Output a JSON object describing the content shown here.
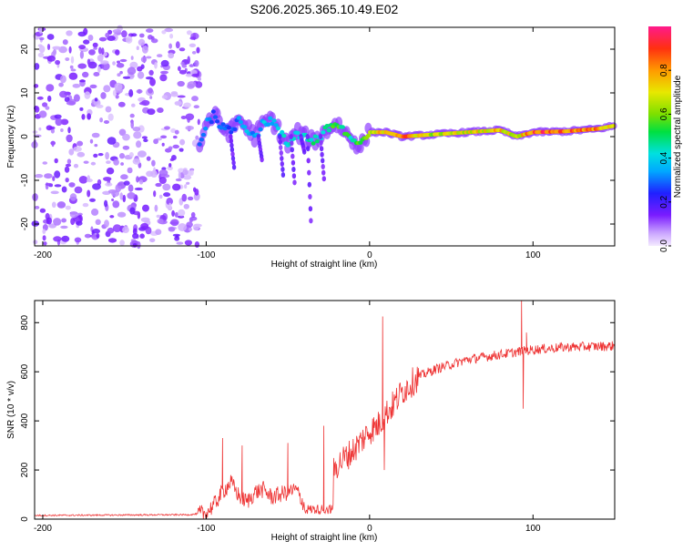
{
  "title": "S206.2025.365.10.49.E02",
  "chart_data": [
    {
      "type": "heatmap",
      "xlabel": "Height of straight line (km)",
      "ylabel": "Frequency (Hz)",
      "xlim": [
        -205,
        150
      ],
      "ylim": [
        -25,
        25
      ],
      "xticks": [
        -200,
        -100,
        0,
        100
      ],
      "yticks": [
        -20,
        -10,
        0,
        10,
        20
      ],
      "ridge": {
        "x": [
          -104,
          -100,
          -95,
          -90,
          -85,
          -80,
          -75,
          -70,
          -65,
          -60,
          -55,
          -50,
          -45,
          -40,
          -35,
          -30,
          -25,
          -20,
          -15,
          -10,
          -5,
          0,
          10,
          20,
          40,
          60,
          80,
          90,
          100,
          120,
          140,
          150
        ],
        "freq": [
          -2,
          3,
          5,
          2,
          1,
          4,
          2,
          0,
          3,
          4,
          1,
          -2,
          1,
          0,
          -1,
          0,
          2,
          3,
          1,
          -1,
          -2,
          1,
          1,
          0,
          0.5,
          1,
          1.5,
          0,
          1,
          1.2,
          1.8,
          2.5
        ],
        "amp": [
          0.3,
          0.35,
          0.3,
          0.35,
          0.3,
          0.35,
          0.4,
          0.35,
          0.4,
          0.35,
          0.4,
          0.45,
          0.4,
          0.45,
          0.5,
          0.5,
          0.55,
          0.6,
          0.55,
          0.5,
          0.6,
          0.65,
          0.85,
          0.9,
          0.7,
          0.75,
          0.8,
          0.7,
          0.95,
          0.9,
          0.85,
          0.8
        ]
      },
      "noise_region_x": [
        -205,
        -104
      ]
    },
    {
      "type": "colorbar",
      "label": "Normalized spectral amplitude",
      "range": [
        0.0,
        1.0
      ],
      "ticks": [
        "0.0",
        "0.2",
        "0.4",
        "0.6",
        "0.8"
      ],
      "tick_values": [
        0.0,
        0.2,
        0.4,
        0.6,
        0.8
      ]
    },
    {
      "type": "line",
      "xlabel": "Height of straight line (km)",
      "ylabel": "SNR (10 * v/v)",
      "xlim": [
        -205,
        150
      ],
      "ylim": [
        0,
        890
      ],
      "xticks": [
        -200,
        -100,
        0,
        100
      ],
      "yticks": [
        0,
        200,
        400,
        600,
        800
      ],
      "color": "#ee3333",
      "trend": {
        "x": [
          -205,
          -110,
          -100,
          -95,
          -90,
          -85,
          -80,
          -75,
          -70,
          -65,
          -60,
          -55,
          -50,
          -45,
          -40,
          -35,
          -30,
          -25,
          -20,
          -15,
          -10,
          -5,
          0,
          5,
          10,
          15,
          20,
          30,
          40,
          50,
          60,
          70,
          80,
          90,
          100,
          120,
          150
        ],
        "y": [
          15,
          18,
          25,
          60,
          110,
          150,
          95,
          70,
          110,
          120,
          90,
          100,
          110,
          120,
          60,
          20,
          30,
          160,
          220,
          250,
          280,
          320,
          360,
          380,
          430,
          470,
          520,
          580,
          610,
          630,
          650,
          660,
          670,
          680,
          690,
          700,
          705
        ]
      },
      "spikes": {
        "x": [
          -90,
          -78,
          -50,
          -28,
          8,
          9,
          93,
          94,
          96
        ],
        "y": [
          330,
          300,
          310,
          380,
          825,
          200,
          890,
          450,
          760
        ]
      }
    }
  ]
}
